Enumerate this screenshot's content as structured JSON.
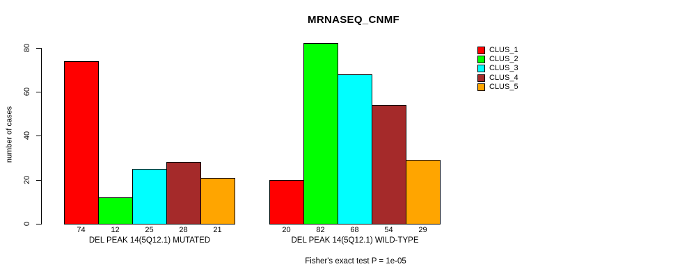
{
  "chart_data": {
    "type": "bar",
    "title": "MRNASEQ_CNMF",
    "ylabel": "number of cases",
    "xlabel": "",
    "ylim": [
      0,
      80
    ],
    "yticks": [
      0,
      20,
      40,
      60,
      80
    ],
    "grid": false,
    "legend_position": "top-right",
    "series": [
      {
        "name": "CLUS_1",
        "color": "#ff0000",
        "values": [
          74,
          20
        ]
      },
      {
        "name": "CLUS_2",
        "color": "#00ff00",
        "values": [
          12,
          82
        ]
      },
      {
        "name": "CLUS_3",
        "color": "#00ffff",
        "values": [
          25,
          68
        ]
      },
      {
        "name": "CLUS_4",
        "color": "#a52a2a",
        "values": [
          28,
          54
        ]
      },
      {
        "name": "CLUS_5",
        "color": "#ffa500",
        "values": [
          21,
          29
        ]
      }
    ],
    "groups": [
      {
        "label": "DEL PEAK 14(5Q12.1) MUTATED",
        "values": [
          74,
          12,
          25,
          28,
          21
        ]
      },
      {
        "label": "DEL PEAK 14(5Q12.1) WILD-TYPE",
        "values": [
          20,
          82,
          68,
          54,
          29
        ]
      }
    ],
    "footnote": "Fisher's exact test P = 1e-05",
    "text_color": "#000000",
    "background_color": "#ffffff"
  }
}
